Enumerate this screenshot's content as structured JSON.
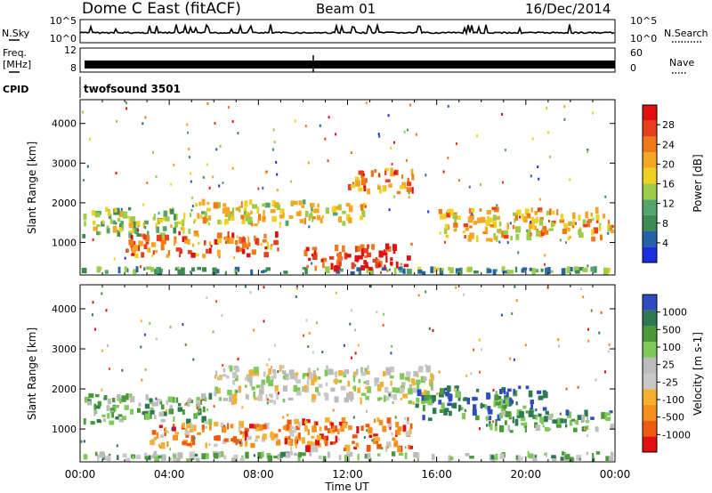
{
  "header": {
    "station": "Dome C East (fitACF)",
    "beam": "Beam 01",
    "date": "16/Dec/2014"
  },
  "status_panels": {
    "nsky": {
      "label": "N.Sky",
      "ticks": [
        "10^5",
        "10^0"
      ]
    },
    "nsearch": {
      "label": "N.Search",
      "ticks": [
        "10^5",
        "10^0"
      ]
    },
    "freq": {
      "label_line1": "Freq.",
      "label_line2": "[MHz]",
      "ticks": [
        "12",
        "8"
      ]
    },
    "nave": {
      "label": "Nave",
      "ticks": [
        "60",
        "0"
      ]
    },
    "cpid": {
      "label": "CPID",
      "value": "twofsound 3501"
    }
  },
  "x_axis": {
    "label": "Time UT",
    "ticks": [
      "00:00",
      "04:00",
      "08:00",
      "12:00",
      "16:00",
      "20:00",
      "00:00"
    ]
  },
  "colors": {
    "power": [
      "#1a2de0",
      "#2563a8",
      "#3d8a55",
      "#53a56a",
      "#9ccc4a",
      "#f0d020",
      "#f5a623",
      "#f07a1a",
      "#e8401e",
      "#e01010"
    ],
    "velocity": [
      "#e01010",
      "#ee5a10",
      "#f5901e",
      "#f5b030",
      "#c8c8c8",
      "#bcbcbc",
      "#7fc85a",
      "#4a9a3a",
      "#2e7a50",
      "#2d4cc0"
    ]
  },
  "chart_data": [
    {
      "type": "heatmap",
      "panel": "power",
      "xlabel": "",
      "ylabel": "Slant Range [km]",
      "xlim_hours": [
        0,
        24
      ],
      "ylim_km": [
        180,
        4600
      ],
      "yticks": [
        1000,
        2000,
        3000,
        4000
      ],
      "colorbar": {
        "label": "Power [dB]",
        "range": [
          0,
          30
        ],
        "ticks": [
          "4",
          "8",
          "12",
          "16",
          "20",
          "24",
          "28"
        ]
      },
      "echo_bands": [
        {
          "t_start": 0,
          "t_end": 24,
          "r_min": 180,
          "r_max": 400,
          "level": 0.3
        },
        {
          "t_start": 0,
          "t_end": 5,
          "r_min": 1100,
          "r_max": 1900,
          "level": 0.45
        },
        {
          "t_start": 2,
          "t_end": 9,
          "r_min": 600,
          "r_max": 1300,
          "level": 0.8
        },
        {
          "t_start": 5,
          "t_end": 13,
          "r_min": 1400,
          "r_max": 2100,
          "level": 0.55
        },
        {
          "t_start": 10,
          "t_end": 15,
          "r_min": 250,
          "r_max": 1000,
          "level": 0.95
        },
        {
          "t_start": 12,
          "t_end": 15,
          "r_min": 2200,
          "r_max": 2900,
          "level": 0.75
        },
        {
          "t_start": 16,
          "t_end": 24,
          "r_min": 1000,
          "r_max": 1900,
          "level": 0.65
        }
      ]
    },
    {
      "type": "heatmap",
      "panel": "velocity",
      "xlabel": "Time UT",
      "ylabel": "Slant Range [km]",
      "xlim_hours": [
        0,
        24
      ],
      "ylim_km": [
        180,
        4600
      ],
      "yticks": [
        1000,
        2000,
        3000,
        4000
      ],
      "colorbar": {
        "label": "Velocity [m s-1]",
        "range": [
          -1000,
          1000
        ],
        "ticks": [
          "-1000",
          "-500",
          "-100",
          "-25",
          "25",
          "100",
          "500",
          "1000"
        ]
      },
      "echo_bands": [
        {
          "t_start": 0,
          "t_end": 24,
          "r_min": 180,
          "r_max": 450,
          "level": 0.65
        },
        {
          "t_start": 0,
          "t_end": 6,
          "r_min": 1100,
          "r_max": 1900,
          "level": 0.7
        },
        {
          "t_start": 3,
          "t_end": 10,
          "r_min": 500,
          "r_max": 1200,
          "level": 0.25
        },
        {
          "t_start": 6,
          "t_end": 16,
          "r_min": 1600,
          "r_max": 2600,
          "level": 0.5
        },
        {
          "t_start": 9,
          "t_end": 15,
          "r_min": 400,
          "r_max": 1300,
          "level": 0.2
        },
        {
          "t_start": 15,
          "t_end": 21,
          "r_min": 1200,
          "r_max": 2100,
          "level": 0.85
        },
        {
          "t_start": 18,
          "t_end": 24,
          "r_min": 900,
          "r_max": 1500,
          "level": 0.75
        }
      ]
    }
  ]
}
